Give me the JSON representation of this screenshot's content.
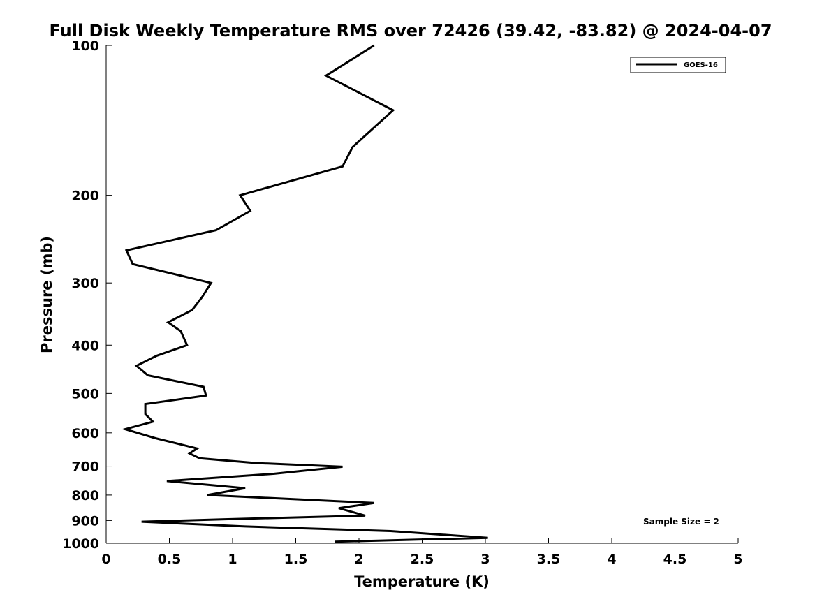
{
  "chart_data": {
    "type": "line",
    "title": "Full Disk Weekly Temperature RMS over 72426 (39.42, -83.82) @ 2024-04-07",
    "xlabel": "Temperature (K)",
    "ylabel": "Pressure (mb)",
    "xlim": [
      0,
      5
    ],
    "ylim": [
      1000,
      100
    ],
    "y_scale": "log",
    "y_inverted": true,
    "xticks": [
      "0",
      "0.5",
      "1",
      "1.5",
      "2",
      "2.5",
      "3",
      "3.5",
      "4",
      "4.5",
      "5"
    ],
    "yticks": [
      "100",
      "200",
      "300",
      "400",
      "500",
      "600",
      "700",
      "800",
      "900",
      "1000"
    ],
    "grid": false,
    "legend": {
      "position": "top-right",
      "entries": [
        "GOES-16"
      ]
    },
    "annotation": "Sample Size = 2",
    "series": [
      {
        "name": "GOES-16",
        "color": "#000000",
        "points": [
          [
            2.12,
            100
          ],
          [
            1.74,
            115
          ],
          [
            2.27,
            135
          ],
          [
            1.95,
            160
          ],
          [
            1.87,
            175
          ],
          [
            1.06,
            200
          ],
          [
            1.14,
            215
          ],
          [
            0.87,
            235
          ],
          [
            0.16,
            258
          ],
          [
            0.21,
            275
          ],
          [
            0.83,
            300
          ],
          [
            0.76,
            320
          ],
          [
            0.68,
            340
          ],
          [
            0.49,
            360
          ],
          [
            0.59,
            375
          ],
          [
            0.64,
            400
          ],
          [
            0.4,
            420
          ],
          [
            0.24,
            440
          ],
          [
            0.33,
            460
          ],
          [
            0.77,
            485
          ],
          [
            0.79,
            505
          ],
          [
            0.31,
            525
          ],
          [
            0.31,
            550
          ],
          [
            0.37,
            570
          ],
          [
            0.15,
            590
          ],
          [
            0.39,
            615
          ],
          [
            0.72,
            645
          ],
          [
            0.66,
            660
          ],
          [
            0.74,
            675
          ],
          [
            1.19,
            690
          ],
          [
            1.87,
            702
          ],
          [
            1.33,
            725
          ],
          [
            0.48,
            750
          ],
          [
            1.1,
            775
          ],
          [
            0.8,
            800
          ],
          [
            2.12,
            830
          ],
          [
            1.84,
            850
          ],
          [
            2.05,
            880
          ],
          [
            0.94,
            895
          ],
          [
            0.28,
            905
          ],
          [
            1.1,
            925
          ],
          [
            2.25,
            945
          ],
          [
            3.02,
            975
          ],
          [
            1.81,
            993
          ]
        ]
      }
    ]
  }
}
